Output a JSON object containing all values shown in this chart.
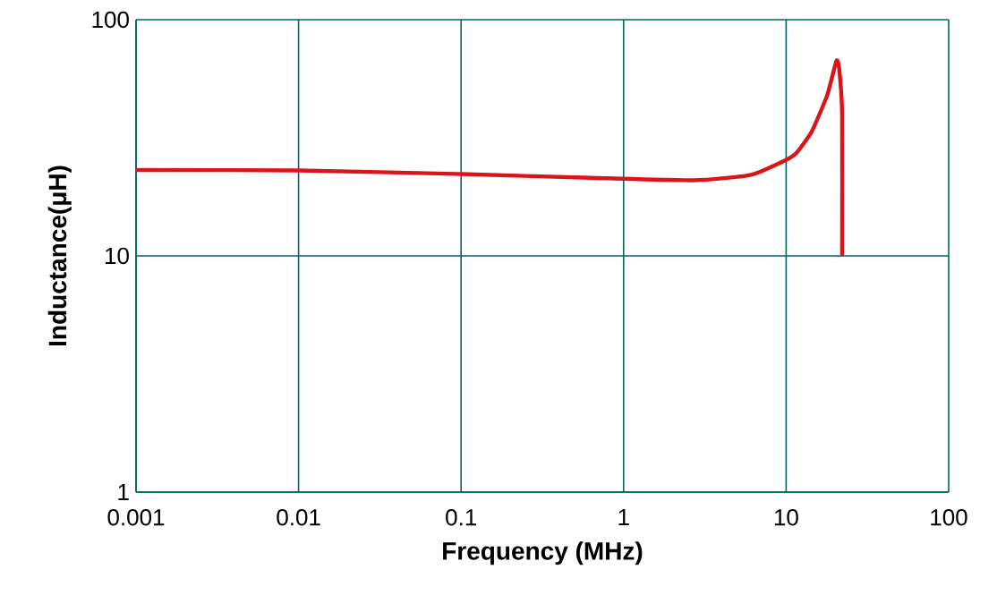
{
  "chart_data": {
    "type": "line",
    "xlabel": "Frequency (MHz)",
    "ylabel": "Inductance(μH)",
    "log": "xy",
    "grid": true,
    "xlim": [
      0.001,
      100
    ],
    "ylim": [
      1,
      100
    ],
    "xticks": [
      0.001,
      0.01,
      0.1,
      1,
      10,
      100
    ],
    "yticks": [
      1,
      10,
      100
    ],
    "series": [
      {
        "color": "#d9141a",
        "x": [
          0.001,
          0.01,
          0.1,
          0.63,
          2.7,
          6,
          10,
          11.7,
          14.4,
          17.9,
          20.4,
          21.2,
          22.1,
          22.1
        ],
        "values": [
          23.1,
          23.0,
          22.2,
          21.4,
          20.9,
          22,
          25.5,
          27.5,
          33.7,
          47.9,
          67,
          62,
          40,
          10
        ]
      }
    ]
  }
}
